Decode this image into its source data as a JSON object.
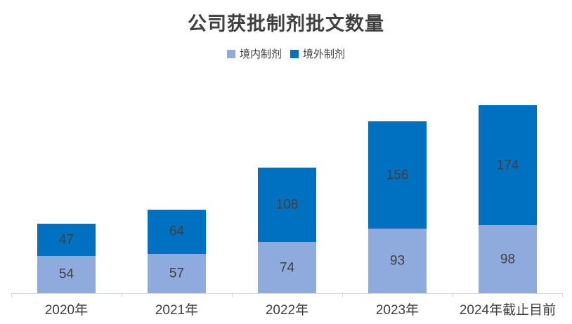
{
  "chart_data": {
    "type": "bar",
    "stacked": true,
    "title": "公司获批制剂批文数量",
    "categories": [
      "2020年",
      "2021年",
      "2022年",
      "2023年",
      "2024年截止目前"
    ],
    "series": [
      {
        "name": "境内制剂",
        "color": "#8FAADC",
        "values": [
          54,
          57,
          74,
          93,
          98
        ]
      },
      {
        "name": "境外制剂",
        "color": "#0070C0",
        "values": [
          47,
          64,
          108,
          156,
          174
        ]
      }
    ],
    "totals": [
      101,
      121,
      182,
      249,
      272
    ],
    "xlabel": "",
    "ylabel": "",
    "legend_position": "top",
    "grid": false,
    "data_labels": true,
    "colors": {
      "title_text": "#404040",
      "label_text": "#404040",
      "axis_line": "#D9D9D9",
      "background": "#FFFFFF"
    }
  }
}
